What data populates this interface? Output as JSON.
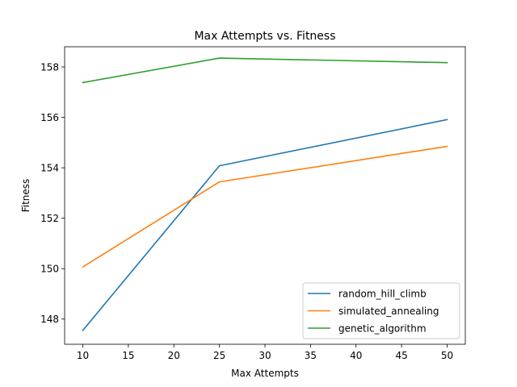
{
  "chart_data": {
    "type": "line",
    "title": "Max Attempts vs. Fitness",
    "xlabel": "Max Attempts",
    "ylabel": "Fitness",
    "x": [
      10,
      25,
      50
    ],
    "xlim": [
      8,
      52
    ],
    "ylim": [
      147,
      158.8
    ],
    "xticks": [
      10,
      15,
      20,
      25,
      30,
      35,
      40,
      45,
      50
    ],
    "yticks": [
      148,
      150,
      152,
      154,
      156,
      158
    ],
    "grid": false,
    "legend_position": "lower-right",
    "series": [
      {
        "name": "random_hill_climb",
        "color": "#1f77b4",
        "values": [
          147.55,
          154.08,
          155.91
        ]
      },
      {
        "name": "simulated_annealing",
        "color": "#ff7f0e",
        "values": [
          150.07,
          153.44,
          154.85
        ]
      },
      {
        "name": "genetic_algorithm",
        "color": "#2ca02c",
        "values": [
          157.38,
          158.35,
          158.17
        ]
      }
    ]
  }
}
